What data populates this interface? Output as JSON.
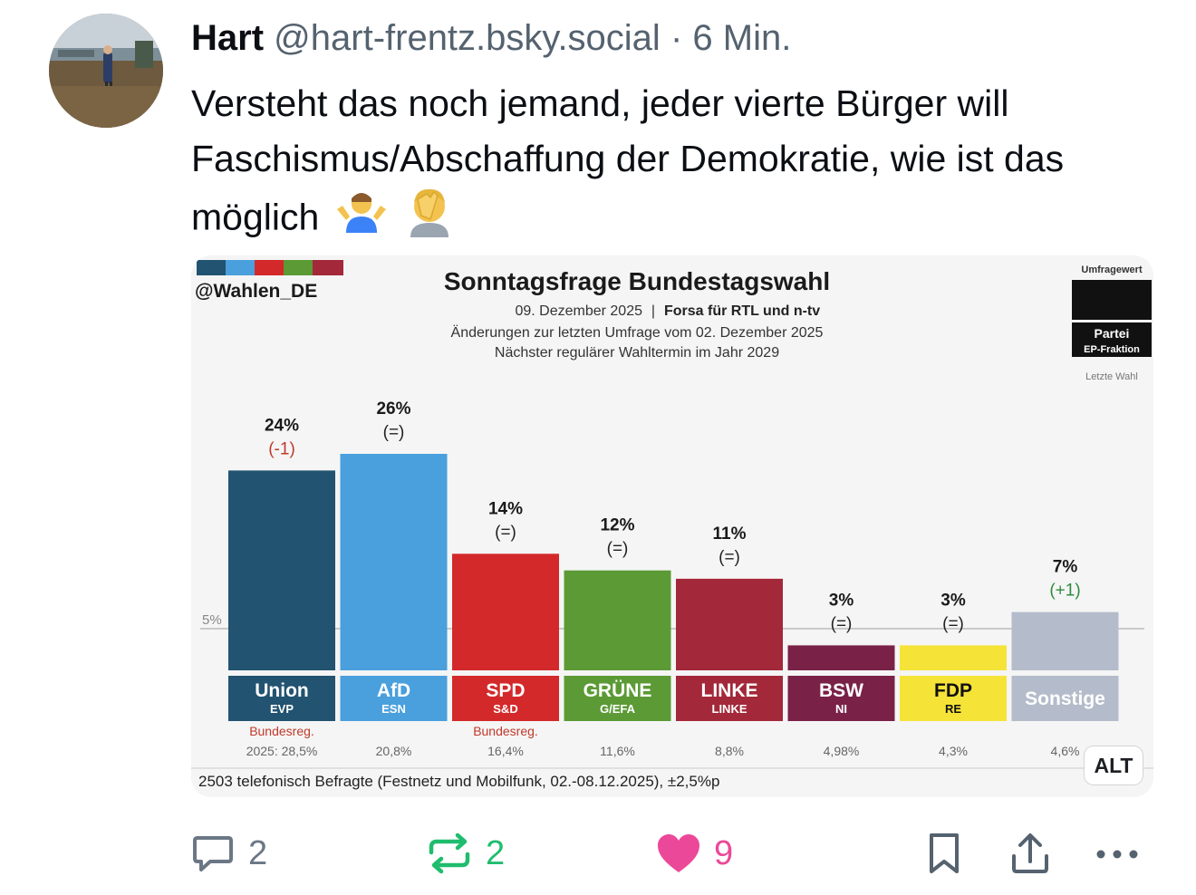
{
  "post": {
    "author_name": "Hart",
    "handle": "@hart-frentz.bsky.social",
    "separator": "·",
    "time": "6 Min.",
    "text": "Versteht das noch jemand, jeder vierte Bürger will Faschismus/Abschaffung der Demokratie, wie ist das möglich",
    "emoji_names": [
      "person-shrugging-icon",
      "face-palm-icon"
    ]
  },
  "embed": {
    "alt_label": "ALT",
    "image": {
      "brand": "@Wahlen_DE",
      "title": "Sonntagsfrage Bundestagswahl",
      "date": "09. Dezember 2025",
      "institute": "Forsa für RTL und n-tv",
      "changes_line": "Änderungen zur letzten Umfrage vom 02. Dezember 2025",
      "next_election_line": "Nächster regulärer Wahltermin im Jahr 2029",
      "legend": {
        "survey_value": "Umfragewert",
        "party": "Partei",
        "faction": "EP-Fraktion",
        "last_election": "Letzte Wahl"
      },
      "threshold_label": "5%",
      "footer": "2503 telefonisch Befragte (Festnetz und Mobilfunk, 02.-08.12.2025), ±2,5%p"
    }
  },
  "chart_data": {
    "type": "bar",
    "title": "Sonntagsfrage Bundestagswahl",
    "categories": [
      "Union",
      "AfD",
      "SPD",
      "GRÜNE",
      "LINKE",
      "BSW",
      "FDP",
      "Sonstige"
    ],
    "factions": [
      "EVP",
      "ESN",
      "S&D",
      "G/EFA",
      "LINKE",
      "NI",
      "RE",
      ""
    ],
    "values": [
      24,
      26,
      14,
      12,
      11,
      3,
      3,
      7
    ],
    "value_labels": [
      "24%",
      "26%",
      "14%",
      "12%",
      "11%",
      "3%",
      "3%",
      "7%"
    ],
    "changes": [
      "(-1)",
      "(=)",
      "(=)",
      "(=)",
      "(=)",
      "(=)",
      "(=)",
      "(+1)"
    ],
    "change_colors": [
      "#c0392b",
      "#222222",
      "#222222",
      "#222222",
      "#222222",
      "#222222",
      "#222222",
      "#2e8b3e"
    ],
    "government_labels": [
      "Bundesreg.",
      "",
      "Bundesreg.",
      "",
      "",
      "",
      "",
      ""
    ],
    "last_election": [
      "2025: 28,5%",
      "20,8%",
      "16,4%",
      "11,6%",
      "8,8%",
      "4,98%",
      "4,3%",
      "4,6%"
    ],
    "colors": [
      "#225370",
      "#4a9fdd",
      "#d3292a",
      "#5b9a35",
      "#a3283a",
      "#7a2148",
      "#f5e437",
      "#b4bccb"
    ],
    "label_text_colors": [
      "#ffffff",
      "#ffffff",
      "#ffffff",
      "#ffffff",
      "#ffffff",
      "#ffffff",
      "#111111",
      "#ffffff"
    ],
    "threshold": 5,
    "ylim": [
      0,
      26
    ],
    "grid": false,
    "legend_position": "top-right"
  },
  "actions": {
    "reply_count": "2",
    "repost_count": "2",
    "like_count": "9"
  },
  "colors": {
    "text": "#0b0f14",
    "muted": "#55626f",
    "repost": "#20bc6e",
    "like": "#ec4899"
  }
}
